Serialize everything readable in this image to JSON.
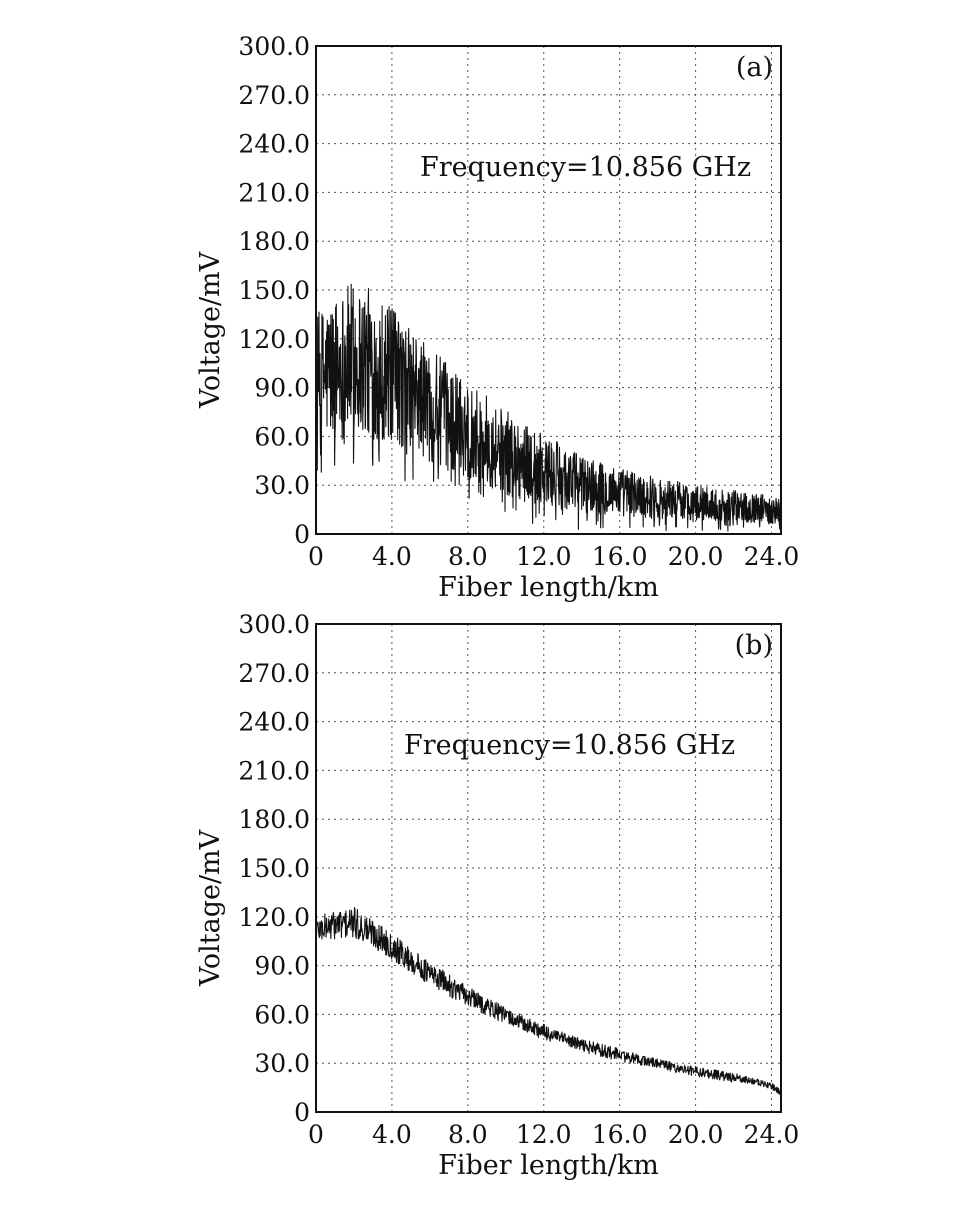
{
  "chart_data": [
    {
      "type": "line",
      "panel_label": "(a)",
      "annotation": "Frequency=10.856 GHz",
      "xlabel": "Fiber length/km",
      "ylabel": "Voltage/mV",
      "xlim": [
        0,
        24.5
      ],
      "ylim": [
        0,
        300
      ],
      "x_ticks": [
        "0",
        "4.0",
        "8.0",
        "12.0",
        "16.0",
        "20.0",
        "24.0"
      ],
      "y_ticks": [
        "0",
        "30.0",
        "60.0",
        "90.0",
        "120.0",
        "150.0",
        "180.0",
        "210.0",
        "240.0",
        "270.0",
        "300.0"
      ],
      "grid": true,
      "trace_style": "noisy",
      "series": [
        {
          "x": [
            0,
            1,
            2,
            3,
            4,
            5,
            6,
            7,
            8,
            9,
            10,
            11,
            12,
            13,
            14,
            15,
            16,
            17,
            18,
            19,
            20,
            21,
            22,
            23,
            24,
            24.5
          ],
          "values": [
            95,
            102,
            108,
            104,
            97,
            88,
            80,
            72,
            64,
            57,
            50,
            44,
            39,
            35,
            31,
            28,
            26,
            24,
            22,
            21,
            19,
            18,
            17,
            16,
            15,
            14
          ],
          "noise_amplitude": [
            40,
            45,
            48,
            46,
            42,
            38,
            35,
            32,
            30,
            28,
            26,
            24,
            22,
            20,
            18,
            16,
            15,
            14,
            13,
            12,
            11,
            10,
            10,
            9,
            9,
            8
          ]
        }
      ]
    },
    {
      "type": "line",
      "panel_label": "(b)",
      "annotation": "Frequency=10.856 GHz",
      "xlabel": "Fiber length/km",
      "ylabel": "Voltage/mV",
      "xlim": [
        0,
        24.5
      ],
      "ylim": [
        0,
        300
      ],
      "x_ticks": [
        "0",
        "4.0",
        "8.0",
        "12.0",
        "16.0",
        "20.0",
        "24.0"
      ],
      "y_ticks": [
        "0",
        "30.0",
        "60.0",
        "90.0",
        "120.0",
        "150.0",
        "180.0",
        "210.0",
        "240.0",
        "270.0",
        "300.0"
      ],
      "grid": true,
      "trace_style": "smooth",
      "series": [
        {
          "x": [
            0,
            1,
            2,
            3,
            4,
            5,
            6,
            7,
            8,
            9,
            10,
            11,
            12,
            13,
            14,
            15,
            16,
            17,
            18,
            19,
            20,
            21,
            22,
            23,
            24,
            24.5
          ],
          "values": [
            112,
            115,
            116,
            110,
            102,
            93,
            85,
            78,
            71,
            65,
            59,
            54,
            49,
            45,
            41,
            38,
            35,
            32,
            30,
            27,
            25,
            23,
            21,
            19,
            16,
            12
          ],
          "noise_amplitude": [
            8,
            9,
            10,
            9,
            8,
            8,
            7,
            7,
            6,
            6,
            5,
            5,
            5,
            4,
            4,
            4,
            4,
            3,
            3,
            3,
            3,
            3,
            3,
            2,
            2,
            2
          ]
        }
      ]
    }
  ]
}
